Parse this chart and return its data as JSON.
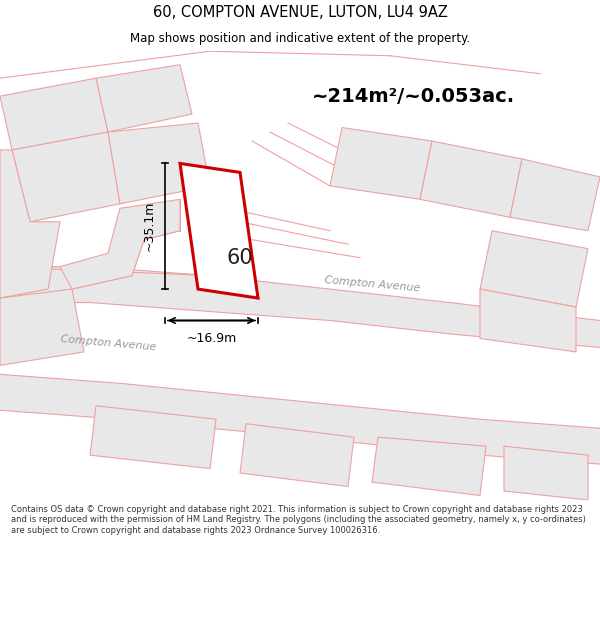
{
  "title": "60, COMPTON AVENUE, LUTON, LU4 9AZ",
  "subtitle": "Map shows position and indicative extent of the property.",
  "area_text": "~214m²/~0.053ac.",
  "label_60": "60",
  "dim_width": "~16.9m",
  "dim_height": "~35.1m",
  "road_label1": "Compton Avenue",
  "road_label2": "Compton Avenue",
  "footer": "Contains OS data © Crown copyright and database right 2021. This information is subject to Crown copyright and database rights 2023 and is reproduced with the permission of HM Land Registry. The polygons (including the associated geometry, namely x, y co-ordinates) are subject to Crown copyright and database rights 2023 Ordnance Survey 100026316.",
  "bg_color": "#ffffff",
  "map_bg": "#ffffff",
  "plot_fill": "#ffffff",
  "plot_edge": "#cc0000",
  "neighbor_fill": "#e8e8e8",
  "neighbor_edge": "#f0a0a0",
  "neighbor_line": "#f0a0a0",
  "road_fill": "#e0e0e0",
  "title_color": "#000000",
  "footer_color": "#333333",
  "dim_color": "#000000",
  "area_color": "#000000",
  "title_sep_color": "#cccccc"
}
